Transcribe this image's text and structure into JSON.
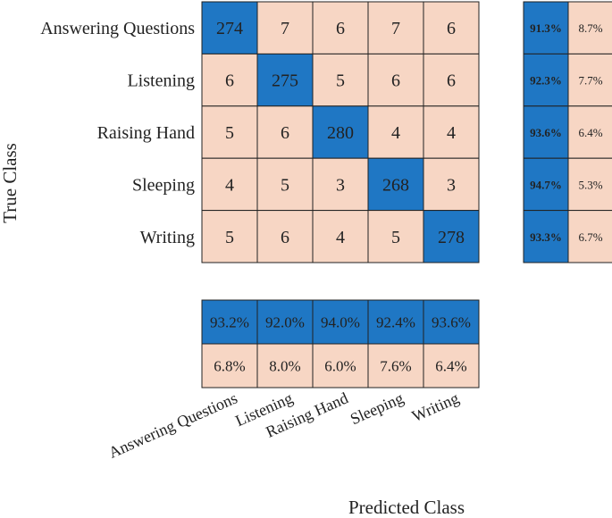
{
  "chart_data": {
    "type": "heatmap",
    "title": "",
    "xlabel": "Predicted Class",
    "ylabel": "True Class",
    "classes": [
      "Answering Questions",
      "Listening",
      "Raising Hand",
      "Sleeping",
      "Writing"
    ],
    "matrix": [
      [
        274,
        7,
        6,
        7,
        6
      ],
      [
        6,
        275,
        5,
        6,
        6
      ],
      [
        5,
        6,
        280,
        4,
        4
      ],
      [
        4,
        5,
        3,
        268,
        3
      ],
      [
        5,
        6,
        4,
        5,
        278
      ]
    ],
    "row_summary": {
      "correct": [
        "91.3%",
        "92.3%",
        "93.6%",
        "94.7%",
        "93.3%"
      ],
      "incorrect": [
        "8.7%",
        "7.7%",
        "6.4%",
        "5.3%",
        "6.7%"
      ]
    },
    "column_summary": {
      "correct": [
        "93.2%",
        "92.0%",
        "94.0%",
        "92.4%",
        "93.6%"
      ],
      "incorrect": [
        "6.8%",
        "8.0%",
        "6.0%",
        "7.6%",
        "6.4%"
      ]
    },
    "colors": {
      "diagonal": "#1f77c4",
      "offdiagonal": "#f7d6c4",
      "border": "#222222",
      "diag_text": "#ffffff",
      "off_text": "#222222"
    }
  }
}
